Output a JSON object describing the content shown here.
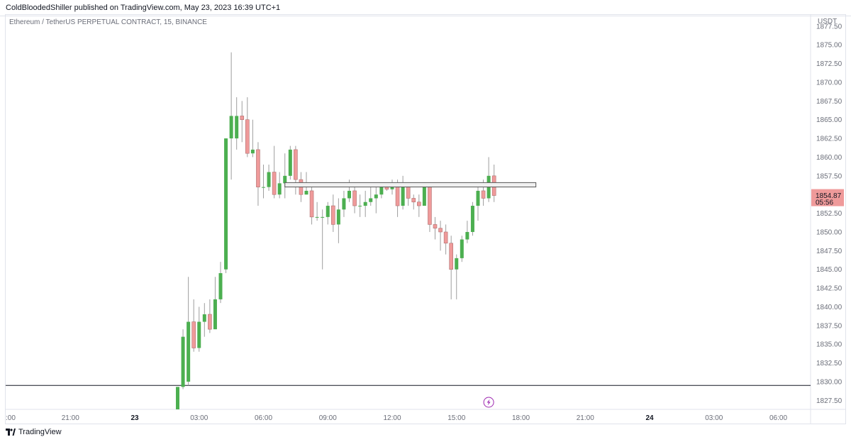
{
  "publication": {
    "text": "ColdBloodedShiller published on TradingView.com, May 23, 2023 16:39 UTC+1"
  },
  "symbol_title": "Ethereum / TetherUS PERPETUAL CONTRACT, 15, BINANCE",
  "footer": {
    "brand": "TradingView"
  },
  "colors": {
    "up": "#4caf50",
    "down": "#ef9a9a",
    "wick": "#9e9e9e",
    "price_label_bg": "#ef9a9a",
    "axis_text": "#6a6d78",
    "lightning": "#9c27b0"
  },
  "chart_data": {
    "type": "candlestick",
    "currency_label": "USDT",
    "y_ticks": [
      "1877.50",
      "1875.00",
      "1872.50",
      "1870.00",
      "1867.50",
      "1865.00",
      "1862.50",
      "1860.00",
      "1857.50",
      "1855.00",
      "1852.50",
      "1850.00",
      "1847.50",
      "1845.00",
      "1842.50",
      "1840.00",
      "1837.50",
      "1835.00",
      "1832.50",
      "1830.00",
      "1827.50"
    ],
    "ylim": [
      1826.3,
      1879
    ],
    "x_ticks": [
      {
        "label": ":00",
        "t": -3.1
      },
      {
        "label": "21:00",
        "t": -3
      },
      {
        "label": "23",
        "t": 0,
        "bold": true
      },
      {
        "label": "03:00",
        "t": 3
      },
      {
        "label": "06:00",
        "t": 6
      },
      {
        "label": "09:00",
        "t": 9
      },
      {
        "label": "12:00",
        "t": 12
      },
      {
        "label": "15:00",
        "t": 15
      },
      {
        "label": "18:00",
        "t": 18
      },
      {
        "label": "21:00",
        "t": 21
      },
      {
        "label": "24",
        "t": 24,
        "bold": true
      },
      {
        "label": "03:00",
        "t": 27
      },
      {
        "label": "06:00",
        "t": 30
      }
    ],
    "current_price": {
      "value": 1854.87,
      "label": "1854.87",
      "countdown": "05:56"
    },
    "horizontal_level": 1829.5,
    "rectangle": {
      "t_start": 7.0,
      "t_end": 18.7,
      "price_top": 1856.5,
      "price_bottom": 1856.2
    },
    "lightning_marker": {
      "t": 16.5
    },
    "candles": [
      {
        "t": 2.0,
        "o": 1826.3,
        "h": 1829.3,
        "l": 1826.3,
        "c": 1829.3
      },
      {
        "t": 2.25,
        "o": 1829.3,
        "h": 1837.0,
        "l": 1829.0,
        "c": 1836.0
      },
      {
        "t": 2.5,
        "o": 1830.0,
        "h": 1844.0,
        "l": 1829.5,
        "c": 1838.0
      },
      {
        "t": 2.75,
        "o": 1838.0,
        "h": 1841.0,
        "l": 1834.0,
        "c": 1834.5
      },
      {
        "t": 3.0,
        "o": 1834.5,
        "h": 1840.0,
        "l": 1834.0,
        "c": 1838.0
      },
      {
        "t": 3.25,
        "o": 1838.0,
        "h": 1840.5,
        "l": 1836.0,
        "c": 1839.0
      },
      {
        "t": 3.5,
        "o": 1839.0,
        "h": 1841.0,
        "l": 1836.5,
        "c": 1837.0
      },
      {
        "t": 3.75,
        "o": 1837.0,
        "h": 1844.0,
        "l": 1837.0,
        "c": 1841.0
      },
      {
        "t": 4.0,
        "o": 1841.0,
        "h": 1846.0,
        "l": 1840.5,
        "c": 1844.5
      },
      {
        "t": 4.25,
        "o": 1845.0,
        "h": 1862.5,
        "l": 1844.5,
        "c": 1862.5
      },
      {
        "t": 4.5,
        "o": 1862.5,
        "h": 1874.0,
        "l": 1857.0,
        "c": 1865.5
      },
      {
        "t": 4.75,
        "o": 1862.5,
        "h": 1868.0,
        "l": 1861.0,
        "c": 1865.5
      },
      {
        "t": 5.0,
        "o": 1865.5,
        "h": 1867.5,
        "l": 1862.0,
        "c": 1865.0
      },
      {
        "t": 5.25,
        "o": 1865.0,
        "h": 1868.0,
        "l": 1860.0,
        "c": 1860.5
      },
      {
        "t": 5.5,
        "o": 1860.5,
        "h": 1865.0,
        "l": 1860.0,
        "c": 1861.0
      },
      {
        "t": 5.75,
        "o": 1861.0,
        "h": 1862.0,
        "l": 1853.5,
        "c": 1856.0
      },
      {
        "t": 6.0,
        "o": 1856.0,
        "h": 1859.0,
        "l": 1854.5,
        "c": 1856.0
      },
      {
        "t": 6.25,
        "o": 1856.0,
        "h": 1859.0,
        "l": 1855.5,
        "c": 1858.0
      },
      {
        "t": 6.5,
        "o": 1858.0,
        "h": 1861.5,
        "l": 1854.5,
        "c": 1855.0
      },
      {
        "t": 6.75,
        "o": 1855.0,
        "h": 1858.0,
        "l": 1854.5,
        "c": 1856.5
      },
      {
        "t": 7.0,
        "o": 1856.5,
        "h": 1860.5,
        "l": 1854.5,
        "c": 1857.5
      },
      {
        "t": 7.25,
        "o": 1857.5,
        "h": 1861.5,
        "l": 1857.0,
        "c": 1861.0
      },
      {
        "t": 7.5,
        "o": 1861.0,
        "h": 1861.5,
        "l": 1855.0,
        "c": 1857.0
      },
      {
        "t": 7.75,
        "o": 1857.0,
        "h": 1858.0,
        "l": 1854.0,
        "c": 1855.0
      },
      {
        "t": 8.0,
        "o": 1855.0,
        "h": 1858.0,
        "l": 1855.0,
        "c": 1855.5
      },
      {
        "t": 8.25,
        "o": 1855.5,
        "h": 1856.0,
        "l": 1851.0,
        "c": 1852.0
      },
      {
        "t": 8.5,
        "o": 1852.0,
        "h": 1854.0,
        "l": 1851.5,
        "c": 1852.0
      },
      {
        "t": 8.75,
        "o": 1852.0,
        "h": 1853.0,
        "l": 1845.0,
        "c": 1852.0
      },
      {
        "t": 9.0,
        "o": 1852.0,
        "h": 1854.0,
        "l": 1851.0,
        "c": 1853.5
      },
      {
        "t": 9.25,
        "o": 1853.5,
        "h": 1855.0,
        "l": 1850.0,
        "c": 1851.0
      },
      {
        "t": 9.5,
        "o": 1851.0,
        "h": 1854.5,
        "l": 1848.5,
        "c": 1853.0
      },
      {
        "t": 9.75,
        "o": 1853.0,
        "h": 1855.5,
        "l": 1852.0,
        "c": 1854.5
      },
      {
        "t": 10.0,
        "o": 1854.5,
        "h": 1857.0,
        "l": 1854.0,
        "c": 1855.5
      },
      {
        "t": 10.25,
        "o": 1855.5,
        "h": 1856.0,
        "l": 1852.5,
        "c": 1853.5
      },
      {
        "t": 10.5,
        "o": 1853.5,
        "h": 1855.0,
        "l": 1852.0,
        "c": 1853.5
      },
      {
        "t": 10.75,
        "o": 1853.5,
        "h": 1855.5,
        "l": 1852.0,
        "c": 1854.0
      },
      {
        "t": 11.0,
        "o": 1854.0,
        "h": 1856.0,
        "l": 1853.5,
        "c": 1854.5
      },
      {
        "t": 11.25,
        "o": 1854.5,
        "h": 1856.0,
        "l": 1852.5,
        "c": 1855.0
      },
      {
        "t": 11.5,
        "o": 1855.0,
        "h": 1856.5,
        "l": 1854.5,
        "c": 1856.0
      },
      {
        "t": 11.75,
        "o": 1856.0,
        "h": 1856.5,
        "l": 1855.5,
        "c": 1855.7
      },
      {
        "t": 12.0,
        "o": 1855.7,
        "h": 1857.0,
        "l": 1855.0,
        "c": 1856.5
      },
      {
        "t": 12.25,
        "o": 1856.5,
        "h": 1857.0,
        "l": 1852.0,
        "c": 1853.5
      },
      {
        "t": 12.5,
        "o": 1853.5,
        "h": 1857.5,
        "l": 1853.0,
        "c": 1856.0
      },
      {
        "t": 12.75,
        "o": 1856.0,
        "h": 1856.5,
        "l": 1853.5,
        "c": 1854.5
      },
      {
        "t": 13.0,
        "o": 1854.5,
        "h": 1855.0,
        "l": 1853.0,
        "c": 1854.0
      },
      {
        "t": 13.25,
        "o": 1854.0,
        "h": 1855.0,
        "l": 1852.0,
        "c": 1853.5
      },
      {
        "t": 13.5,
        "o": 1853.5,
        "h": 1856.5,
        "l": 1853.5,
        "c": 1856.0
      },
      {
        "t": 13.75,
        "o": 1856.0,
        "h": 1856.5,
        "l": 1850.0,
        "c": 1851.0
      },
      {
        "t": 14.0,
        "o": 1851.0,
        "h": 1852.0,
        "l": 1849.0,
        "c": 1850.5
      },
      {
        "t": 14.25,
        "o": 1850.5,
        "h": 1851.5,
        "l": 1847.5,
        "c": 1850.0
      },
      {
        "t": 14.5,
        "o": 1850.0,
        "h": 1851.0,
        "l": 1847.0,
        "c": 1848.5
      },
      {
        "t": 14.75,
        "o": 1848.5,
        "h": 1849.5,
        "l": 1841.0,
        "c": 1845.0
      },
      {
        "t": 15.0,
        "o": 1845.0,
        "h": 1847.0,
        "l": 1841.0,
        "c": 1846.5
      },
      {
        "t": 15.25,
        "o": 1846.5,
        "h": 1849.5,
        "l": 1846.0,
        "c": 1849.0
      },
      {
        "t": 15.5,
        "o": 1849.0,
        "h": 1851.5,
        "l": 1848.5,
        "c": 1850.0
      },
      {
        "t": 15.75,
        "o": 1850.0,
        "h": 1854.0,
        "l": 1849.5,
        "c": 1853.5
      },
      {
        "t": 16.0,
        "o": 1853.5,
        "h": 1856.5,
        "l": 1851.5,
        "c": 1855.5
      },
      {
        "t": 16.25,
        "o": 1855.5,
        "h": 1857.0,
        "l": 1853.5,
        "c": 1854.5
      },
      {
        "t": 16.5,
        "o": 1854.5,
        "h": 1860.0,
        "l": 1854.0,
        "c": 1857.5
      },
      {
        "t": 16.75,
        "o": 1857.5,
        "h": 1859.0,
        "l": 1854.0,
        "c": 1854.87
      }
    ]
  }
}
